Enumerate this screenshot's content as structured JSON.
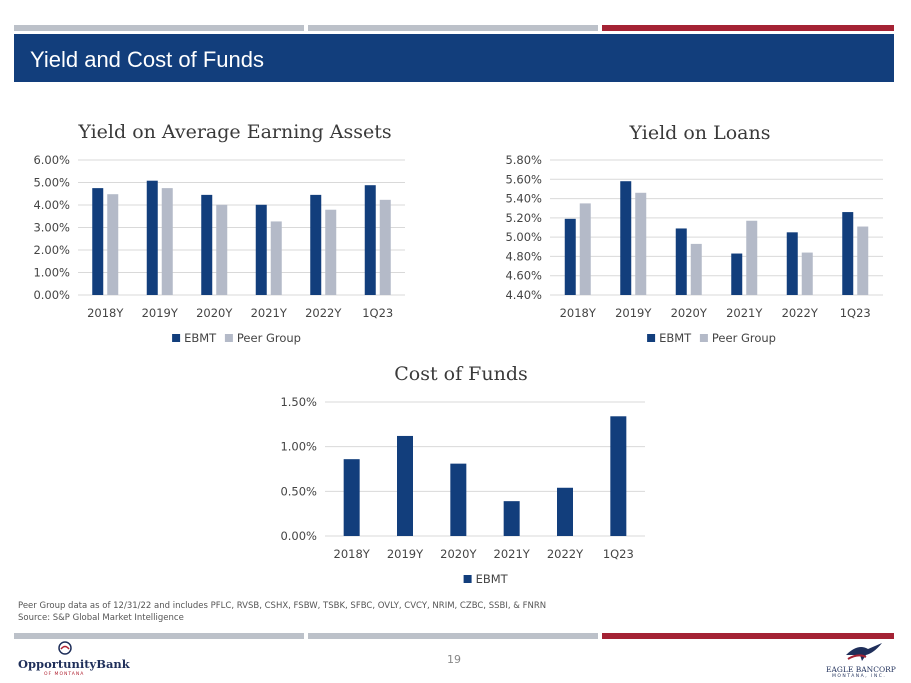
{
  "colors": {
    "navy": "#123e7c",
    "peer_gray": "#b4bac8",
    "stripe_gray": "#bcc1c9",
    "accent_red": "#a42234",
    "grid": "#d9d9d9"
  },
  "header": {
    "title": "Yield and Cost of Funds"
  },
  "chart_data": [
    {
      "type": "bar",
      "title": "Yield on Average Earning Assets",
      "categories": [
        "2018Y",
        "2019Y",
        "2020Y",
        "2021Y",
        "2022Y",
        "1Q23"
      ],
      "series": [
        {
          "name": "EBMT",
          "values": [
            4.75,
            5.08,
            4.45,
            4.01,
            4.45,
            4.88
          ]
        },
        {
          "name": "Peer Group",
          "values": [
            4.48,
            4.75,
            4.01,
            3.27,
            3.79,
            4.23
          ]
        }
      ],
      "ylim": [
        0,
        6
      ],
      "yticks": [
        "6.00%",
        "5.00%",
        "4.00%",
        "3.00%",
        "2.00%",
        "1.00%",
        "0.00%"
      ],
      "grid": true,
      "legend": "bottom"
    },
    {
      "type": "bar",
      "title": "Yield on Loans",
      "categories": [
        "2018Y",
        "2019Y",
        "2020Y",
        "2021Y",
        "2022Y",
        "1Q23"
      ],
      "series": [
        {
          "name": "EBMT",
          "values": [
            5.19,
            5.58,
            5.09,
            4.83,
            5.05,
            5.26
          ]
        },
        {
          "name": "Peer Group",
          "values": [
            5.35,
            5.46,
            4.93,
            5.17,
            4.84,
            5.11
          ]
        }
      ],
      "ylim": [
        4.4,
        5.8
      ],
      "yticks": [
        "5.80%",
        "5.60%",
        "5.40%",
        "5.20%",
        "5.00%",
        "4.80%",
        "4.60%",
        "4.40%"
      ],
      "grid": true,
      "legend": "bottom"
    },
    {
      "type": "bar",
      "title": "Cost of Funds",
      "categories": [
        "2018Y",
        "2019Y",
        "2020Y",
        "2021Y",
        "2022Y",
        "1Q23"
      ],
      "series": [
        {
          "name": "EBMT",
          "values": [
            0.86,
            1.12,
            0.81,
            0.39,
            0.54,
            1.34
          ]
        }
      ],
      "ylim": [
        0,
        1.5
      ],
      "yticks": [
        "1.50%",
        "1.00%",
        "0.50%",
        "0.00%"
      ],
      "grid": true,
      "legend": "bottom"
    }
  ],
  "footnotes": {
    "peer_group": "Peer Group data as of 12/31/22 and includes PFLC, RVSB, CSHX, FSBW, TSBK, SFBC, OVLY, CVCY, NRIM, CZBC, SSBI, & FNRN",
    "source": "Source: S&P Global Market Intelligence"
  },
  "page_number": "19",
  "logos": {
    "left_brand": "OpportunityBank",
    "left_sub": "OF MONTANA",
    "right_brand": "EAGLE BANCORP",
    "right_sub": "MONTANA, INC."
  }
}
